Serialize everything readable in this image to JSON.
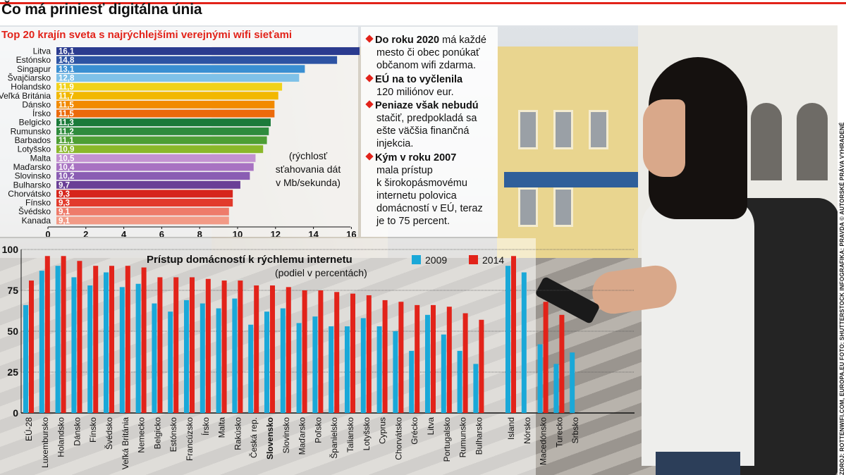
{
  "header": {
    "title": "Čo má priniesť digitálna únia"
  },
  "top_chart": {
    "subtitle": "Top 20 krajín sveta s najrýchlejšími verejnými wifi sieťami",
    "note_lines": [
      "(rýchlosť",
      "sťahovania dát",
      "v Mb/sekunda)"
    ]
  },
  "facts": [
    {
      "bold": "Do roku 2020",
      "lines": [
        "má každé",
        "mesto či obec ponúkať",
        "občanom wifi zdarma."
      ]
    },
    {
      "bold": "EÚ na to vyčlenila",
      "lines": [
        "120 miliónov eur."
      ]
    },
    {
      "bold": "Peniaze však nebudú",
      "lines": [
        "stačiť, predpokladá sa",
        "ešte väčšia finančná",
        "injekcia."
      ]
    },
    {
      "bold": "Kým v roku 2007",
      "lines": [
        "mala prístup",
        "k širokopásmovému",
        "internetu polovica",
        "domácností v EÚ, teraz",
        "je to 75 percent."
      ]
    }
  ],
  "credit": "ZDROJ: ROTTENWIFI.COM, EUROPA.EU  FOTO: SHUTTERSTOCK  INFOGRAFIKA: PRAVDA © AUTORSKÉ PRÁVA VYHRADENÉ",
  "colors": {
    "accent_red": "#e2231a",
    "series_2009": "#1aa8d8",
    "series_2014": "#e2231a"
  },
  "chart_data": [
    {
      "type": "bar",
      "orientation": "horizontal",
      "title": "Top 20 krajín sveta s najrýchlejšími verejnými wifi sieťami",
      "xlabel": "rýchlosť sťahovania dát v Mb/sekunda",
      "xlim": [
        0,
        17
      ],
      "xticks": [
        0,
        2,
        4,
        6,
        8,
        10,
        12,
        14,
        16
      ],
      "categories": [
        "Litva",
        "Estónsko",
        "Singapur",
        "Švajčiarsko",
        "Holandsko",
        "Veľká Británia",
        "Dánsko",
        "Írsko",
        "Belgicko",
        "Rumunsko",
        "Barbados",
        "Lotyšsko",
        "Malta",
        "Maďarsko",
        "Slovinsko",
        "Bulharsko",
        "Chorvátsko",
        "Fínsko",
        "Švédsko",
        "Kanada"
      ],
      "values": [
        16.1,
        14.8,
        13.1,
        12.8,
        11.9,
        11.7,
        11.5,
        11.5,
        11.3,
        11.2,
        11.1,
        10.9,
        10.5,
        10.4,
        10.2,
        9.7,
        9.3,
        9.3,
        9.1,
        9.1
      ],
      "value_labels": [
        "16,1",
        "14,8",
        "13,1",
        "12,8",
        "11,9",
        "11,7",
        "11,5",
        "11,5",
        "11,3",
        "11,2",
        "11,1",
        "10,9",
        "10,5",
        "10,4",
        "10,2",
        "9,7",
        "9,3",
        "9,3",
        "9,1",
        "9,1"
      ],
      "bar_colors": [
        "#2b3b8f",
        "#2d53a3",
        "#3a8fd2",
        "#7fc1e8",
        "#f1d21a",
        "#f2b800",
        "#f28a00",
        "#ec6a0b",
        "#1b7a3a",
        "#2e8b3d",
        "#4d9e35",
        "#8ab82a",
        "#c392d1",
        "#a872c2",
        "#8a5db3",
        "#6a3f96",
        "#d6251c",
        "#e23a2c",
        "#ee7b6a",
        "#f29a86"
      ]
    },
    {
      "type": "bar",
      "orientation": "vertical",
      "title": "Prístup domácností k rýchlemu internetu",
      "subtitle": "(podiel v percentách)",
      "ylim": [
        0,
        100
      ],
      "yticks": [
        0,
        25,
        50,
        75,
        100
      ],
      "categories": [
        "EÚ-28",
        "Luxembursko",
        "Holandsko",
        "Dánsko",
        "Fínsko",
        "Švédsko",
        "Veľká Británia",
        "Nemecko",
        "Belgicko",
        "Estónsko",
        "Francúzsko",
        "Írsko",
        "Malta",
        "Rakúsko",
        "Česká rep.",
        "Slovensko",
        "Slovinsko",
        "Maďarsko",
        "Poľsko",
        "Španielsko",
        "Taliansko",
        "Lotyšsko",
        "Cyprus",
        "Chorvátsko",
        "Grécko",
        "Litva",
        "Portugalsko",
        "Rumunsko",
        "Bulharsko",
        "",
        "Island",
        "Nórsko",
        "Macedónsko",
        "Turecko",
        "Srbsko"
      ],
      "highlight": "Slovensko",
      "series": [
        {
          "name": "2009",
          "values": [
            66,
            87,
            90,
            83,
            78,
            86,
            77,
            79,
            67,
            62,
            69,
            67,
            64,
            70,
            54,
            62,
            64,
            55,
            59,
            53,
            53,
            58,
            53,
            50,
            38,
            60,
            48,
            38,
            30,
            null,
            90,
            86,
            42,
            30,
            37
          ]
        },
        {
          "name": "2014",
          "values": [
            81,
            96,
            96,
            93,
            90,
            90,
            90,
            89,
            83,
            83,
            83,
            82,
            81,
            81,
            78,
            78,
            77,
            75,
            75,
            74,
            73,
            72,
            69,
            68,
            66,
            66,
            65,
            61,
            57,
            null,
            96,
            null,
            68,
            60,
            null
          ]
        }
      ]
    }
  ]
}
